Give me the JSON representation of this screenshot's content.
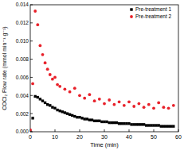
{
  "chart_data": {
    "type": "scatter",
    "x_label": "Time (min)",
    "y_label": "COCl₂ Flow rate (mmol min⁻¹ g⁻¹)",
    "xlim": [
      0,
      60
    ],
    "xticks": [
      0,
      10,
      20,
      30,
      40,
      50,
      60
    ],
    "ylim": [
      0,
      0.014
    ],
    "yticks": [
      {
        "value": 0,
        "label": "0.000"
      },
      {
        "value": 0.002,
        "label": "0.002"
      },
      {
        "value": 0.004,
        "label": "0.004"
      },
      {
        "value": 0.006,
        "label": "0.006"
      },
      {
        "value": 0.008,
        "label": "0.008"
      },
      {
        "value": 0.01,
        "label": "0.010"
      },
      {
        "value": 0.012,
        "label": "0.012"
      },
      {
        "value": 0.014,
        "label": "0.014"
      }
    ],
    "legend": "top-right",
    "series": [
      {
        "name": "Pre-treatment 1",
        "color": "#000000",
        "marker": "square",
        "x": [
          0,
          1,
          2,
          3,
          4,
          5,
          6,
          7,
          8,
          9,
          10,
          11,
          12,
          13,
          14,
          15,
          16,
          17,
          18,
          19,
          20,
          21,
          22,
          23,
          24,
          25,
          26,
          27,
          28,
          29,
          30,
          31,
          32,
          33,
          34,
          35,
          36,
          37,
          38,
          39,
          40,
          41,
          42,
          43,
          44,
          45,
          46,
          47,
          48,
          49,
          50,
          51,
          52,
          53,
          54,
          55,
          56,
          57,
          58
        ],
        "values": [
          0.0,
          0.0015,
          0.0039,
          0.0038,
          0.0036,
          0.0034,
          0.0032,
          0.003,
          0.0029,
          0.0027,
          0.0026,
          0.0024,
          0.0023,
          0.0022,
          0.0021,
          0.002,
          0.0019,
          0.0018,
          0.0017,
          0.0016,
          0.0016,
          0.0015,
          0.0014,
          0.0014,
          0.0013,
          0.0013,
          0.0012,
          0.0012,
          0.0012,
          0.0011,
          0.0011,
          0.0011,
          0.001,
          0.001,
          0.001,
          0.001,
          0.0009,
          0.0009,
          0.0009,
          0.0009,
          0.0009,
          0.0008,
          0.0008,
          0.0008,
          0.0008,
          0.0008,
          0.0008,
          0.0007,
          0.0007,
          0.0007,
          0.0007,
          0.0007,
          0.0007,
          0.0006,
          0.0006,
          0.0006,
          0.0006,
          0.0006,
          0.0006
        ]
      },
      {
        "name": "Pre-treatment 2",
        "color": "#e8212a",
        "marker": "circle",
        "x": [
          0,
          1,
          2,
          3,
          4,
          5,
          6,
          7,
          8,
          9,
          10,
          11,
          12,
          14,
          16,
          18,
          20,
          22,
          24,
          26,
          28,
          30,
          32,
          34,
          36,
          38,
          40,
          42,
          44,
          46,
          48,
          50,
          52,
          54,
          56,
          58
        ],
        "values": [
          0.0002,
          0.0053,
          0.0133,
          0.0118,
          0.0095,
          0.0085,
          0.0076,
          0.0069,
          0.0063,
          0.0058,
          0.006,
          0.0052,
          0.005,
          0.0047,
          0.0044,
          0.0048,
          0.004,
          0.0037,
          0.0041,
          0.0034,
          0.0036,
          0.0031,
          0.0035,
          0.003,
          0.0033,
          0.0029,
          0.0033,
          0.0028,
          0.0031,
          0.0027,
          0.003,
          0.0026,
          0.0032,
          0.0027,
          0.0026,
          0.0029
        ]
      }
    ]
  }
}
